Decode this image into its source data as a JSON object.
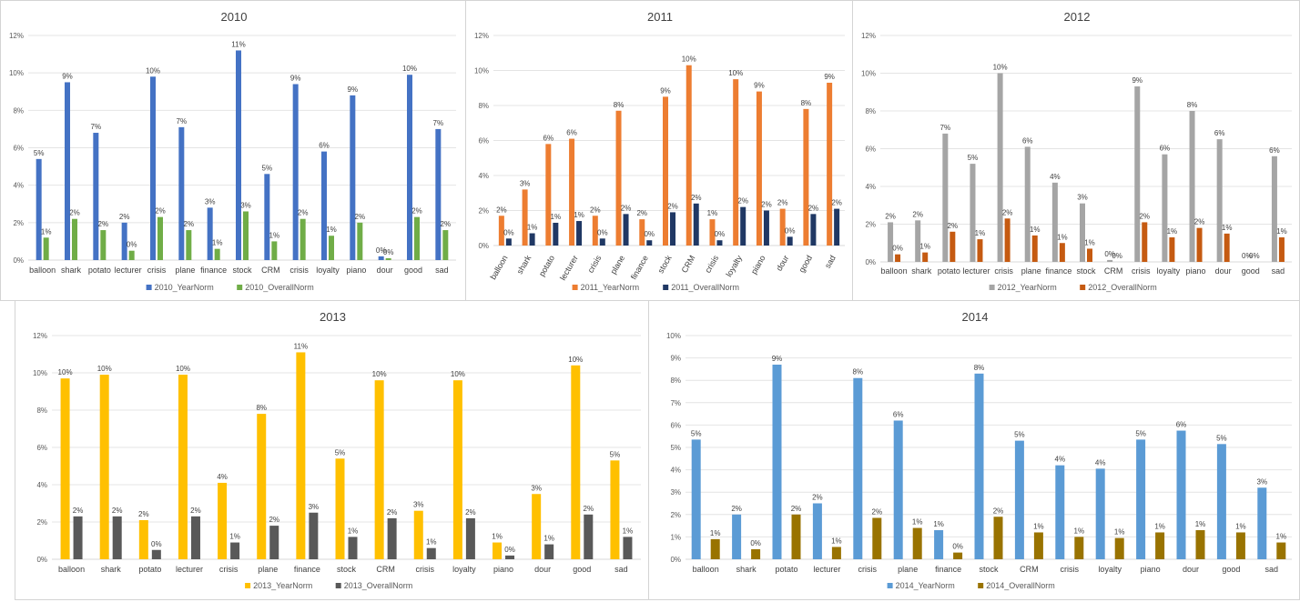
{
  "chart_data": [
    {
      "type": "bar",
      "title": "2010",
      "categories": [
        "balloon",
        "shark",
        "potato",
        "lecturer",
        "crisis",
        "plane",
        "finance",
        "stock",
        "CRM",
        "crisis",
        "loyalty",
        "piano",
        "dour",
        "good",
        "sad"
      ],
      "ylim": [
        0,
        12
      ],
      "yticks": [
        "0%",
        "2%",
        "4%",
        "6%",
        "8%",
        "10%",
        "12%"
      ],
      "grid": true,
      "legend": "bottom",
      "rotate_labels": false,
      "series": [
        {
          "name": "2010_YearNorm",
          "color": "#4472c4",
          "values": [
            5.4,
            9.5,
            6.8,
            2.0,
            9.8,
            7.1,
            2.8,
            11.2,
            4.6,
            9.4,
            5.8,
            8.8,
            0.2,
            9.9,
            7.0
          ],
          "labels": [
            "5%",
            "9%",
            "7%",
            "2%",
            "10%",
            "7%",
            "3%",
            "11%",
            "5%",
            "9%",
            "6%",
            "9%",
            "0%",
            "10%",
            "7%"
          ]
        },
        {
          "name": "2010_OverallNorm",
          "color": "#70ad47",
          "values": [
            1.2,
            2.2,
            1.6,
            0.5,
            2.3,
            1.6,
            0.6,
            2.6,
            1.0,
            2.2,
            1.3,
            2.0,
            0.1,
            2.3,
            1.6
          ],
          "labels": [
            "1%",
            "2%",
            "2%",
            "0%",
            "2%",
            "2%",
            "1%",
            "3%",
            "1%",
            "2%",
            "1%",
            "2%",
            "0%",
            "2%",
            "2%"
          ]
        }
      ]
    },
    {
      "type": "bar",
      "title": "2011",
      "categories": [
        "balloon",
        "shark",
        "potato",
        "lecturer",
        "crisis",
        "plane",
        "finance",
        "stock",
        "CRM",
        "crisis",
        "loyalty",
        "piano",
        "dour",
        "good",
        "sad"
      ],
      "ylim": [
        0,
        12
      ],
      "yticks": [
        "0%",
        "2%",
        "4%",
        "6%",
        "8%",
        "10%",
        "12%"
      ],
      "grid": true,
      "legend": "bottom",
      "rotate_labels": true,
      "series": [
        {
          "name": "2011_YearNorm",
          "color": "#ed7d31",
          "values": [
            1.7,
            3.2,
            5.8,
            6.1,
            1.7,
            7.7,
            1.5,
            8.5,
            10.3,
            1.5,
            9.5,
            8.8,
            2.1,
            7.8,
            9.3
          ],
          "labels": [
            "2%",
            "3%",
            "6%",
            "6%",
            "2%",
            "8%",
            "2%",
            "9%",
            "10%",
            "1%",
            "10%",
            "9%",
            "2%",
            "8%",
            "9%"
          ]
        },
        {
          "name": "2011_OverallNorm",
          "color": "#203864",
          "values": [
            0.4,
            0.7,
            1.3,
            1.4,
            0.4,
            1.8,
            0.3,
            1.9,
            2.4,
            0.3,
            2.2,
            2.0,
            0.5,
            1.8,
            2.1
          ],
          "labels": [
            "0%",
            "1%",
            "1%",
            "1%",
            "0%",
            "2%",
            "0%",
            "2%",
            "2%",
            "0%",
            "2%",
            "2%",
            "0%",
            "2%",
            "2%"
          ]
        }
      ]
    },
    {
      "type": "bar",
      "title": "2012",
      "categories": [
        "balloon",
        "shark",
        "potato",
        "lecturer",
        "crisis",
        "plane",
        "finance",
        "stock",
        "CRM",
        "crisis",
        "loyalty",
        "piano",
        "dour",
        "good",
        "sad"
      ],
      "ylim": [
        0,
        12
      ],
      "yticks": [
        "0%",
        "2%",
        "4%",
        "6%",
        "8%",
        "10%",
        "12%"
      ],
      "grid": true,
      "legend": "bottom",
      "rotate_labels": false,
      "series": [
        {
          "name": "2012_YearNorm",
          "color": "#a5a5a5",
          "values": [
            2.1,
            2.2,
            6.8,
            5.2,
            10.0,
            6.1,
            4.2,
            3.1,
            0.1,
            9.3,
            5.7,
            8.0,
            6.5,
            0.0,
            5.6
          ],
          "labels": [
            "2%",
            "2%",
            "7%",
            "5%",
            "10%",
            "6%",
            "4%",
            "3%",
            "0%",
            "9%",
            "6%",
            "8%",
            "6%",
            "0%",
            "6%"
          ]
        },
        {
          "name": "2012_OverallNorm",
          "color": "#c55a11",
          "values": [
            0.4,
            0.5,
            1.6,
            1.2,
            2.3,
            1.4,
            1.0,
            0.7,
            0.0,
            2.1,
            1.3,
            1.8,
            1.5,
            0.0,
            1.3
          ],
          "labels": [
            "0%",
            "1%",
            "2%",
            "1%",
            "2%",
            "1%",
            "1%",
            "1%",
            "0%",
            "2%",
            "1%",
            "2%",
            "1%",
            "0%",
            "1%"
          ]
        }
      ]
    },
    {
      "type": "bar",
      "title": "2013",
      "categories": [
        "balloon",
        "shark",
        "potato",
        "lecturer",
        "crisis",
        "plane",
        "finance",
        "stock",
        "CRM",
        "crisis",
        "loyalty",
        "piano",
        "dour",
        "good",
        "sad"
      ],
      "ylim": [
        0,
        12
      ],
      "yticks": [
        "0%",
        "2%",
        "4%",
        "6%",
        "8%",
        "10%",
        "12%"
      ],
      "grid": true,
      "legend": "bottom",
      "rotate_labels": false,
      "series": [
        {
          "name": "2013_YearNorm",
          "color": "#ffc000",
          "values": [
            9.7,
            9.9,
            2.1,
            9.9,
            4.1,
            7.8,
            11.1,
            5.4,
            9.6,
            2.6,
            9.6,
            0.9,
            3.5,
            10.4,
            5.3
          ],
          "labels": [
            "10%",
            "10%",
            "2%",
            "10%",
            "4%",
            "8%",
            "11%",
            "5%",
            "10%",
            "3%",
            "10%",
            "1%",
            "3%",
            "10%",
            "5%"
          ]
        },
        {
          "name": "2013_OverallNorm",
          "color": "#595959",
          "values": [
            2.3,
            2.3,
            0.5,
            2.3,
            0.9,
            1.8,
            2.5,
            1.2,
            2.2,
            0.6,
            2.2,
            0.2,
            0.8,
            2.4,
            1.2
          ],
          "labels": [
            "2%",
            "2%",
            "0%",
            "2%",
            "1%",
            "2%",
            "3%",
            "1%",
            "2%",
            "1%",
            "2%",
            "0%",
            "1%",
            "2%",
            "1%"
          ]
        }
      ]
    },
    {
      "type": "bar",
      "title": "2014",
      "categories": [
        "balloon",
        "shark",
        "potato",
        "lecturer",
        "crisis",
        "plane",
        "finance",
        "stock",
        "CRM",
        "crisis",
        "loyalty",
        "piano",
        "dour",
        "good",
        "sad"
      ],
      "ylim": [
        0,
        10
      ],
      "yticks": [
        "0%",
        "1%",
        "2%",
        "3%",
        "4%",
        "5%",
        "6%",
        "7%",
        "8%",
        "9%",
        "10%"
      ],
      "grid": true,
      "legend": "bottom",
      "rotate_labels": false,
      "series": [
        {
          "name": "2014_YearNorm",
          "color": "#5b9bd5",
          "values": [
            5.35,
            2.0,
            8.7,
            2.5,
            8.1,
            6.2,
            1.3,
            8.3,
            5.3,
            4.2,
            4.05,
            5.35,
            5.75,
            5.15,
            3.2
          ],
          "labels": [
            "5%",
            "2%",
            "9%",
            "2%",
            "8%",
            "6%",
            "1%",
            "8%",
            "5%",
            "4%",
            "4%",
            "5%",
            "6%",
            "5%",
            "3%"
          ]
        },
        {
          "name": "2014_OverallNorm",
          "color": "#997300",
          "values": [
            0.9,
            0.45,
            2.0,
            0.55,
            1.85,
            1.4,
            0.3,
            1.9,
            1.2,
            1.0,
            0.95,
            1.2,
            1.3,
            1.2,
            0.75
          ],
          "labels": [
            "1%",
            "0%",
            "2%",
            "1%",
            "2%",
            "1%",
            "0%",
            "2%",
            "1%",
            "1%",
            "1%",
            "1%",
            "1%",
            "1%",
            "1%"
          ]
        }
      ]
    }
  ]
}
